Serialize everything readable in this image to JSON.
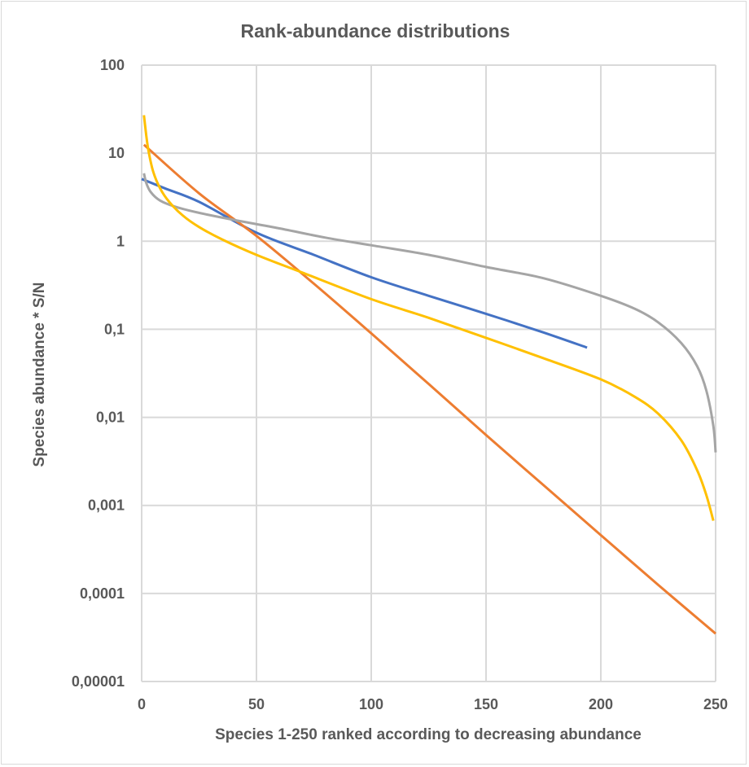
{
  "chart_data": {
    "type": "line",
    "title": "Rank-abundance distributions",
    "xlabel": "Species 1-250 ranked according to decreasing abundance",
    "ylabel": "Species abundance * S/N",
    "xlim": [
      0,
      250
    ],
    "ylim": [
      1e-05,
      100
    ],
    "yscale": "log",
    "grid": true,
    "legend": "none",
    "x_ticks": [
      "0",
      "50",
      "100",
      "150",
      "200",
      "250"
    ],
    "x_tick_values": [
      0,
      50,
      100,
      150,
      200,
      250
    ],
    "y_ticks": [
      "100",
      "10",
      "1",
      "0,1",
      "0,01",
      "0,001",
      "0,0001",
      "0,00001"
    ],
    "y_tick_values": [
      100,
      10,
      1,
      0.1,
      0.01,
      0.001,
      0.0001,
      1e-05
    ],
    "series": [
      {
        "name": "blue-series",
        "color": "#4472c4",
        "x": [
          0,
          10,
          25,
          50,
          75,
          100,
          125,
          150,
          175,
          194
        ],
        "y": [
          5.1,
          4.0,
          2.8,
          1.25,
          0.7,
          0.39,
          0.24,
          0.15,
          0.092,
          0.062
        ]
      },
      {
        "name": "orange-series",
        "color": "#ed7d31",
        "x": [
          1,
          25,
          50,
          75,
          100,
          125,
          150,
          175,
          200,
          225,
          250
        ],
        "y": [
          12.5,
          3.5,
          1.15,
          0.33,
          0.09,
          0.024,
          0.0063,
          0.0017,
          0.00046,
          0.000125,
          3.5e-05
        ]
      },
      {
        "name": "gray-series",
        "color": "#a5a5a5",
        "x": [
          1,
          2,
          4,
          8,
          15,
          25,
          40,
          60,
          80,
          100,
          125,
          150,
          175,
          200,
          215,
          225,
          235,
          242,
          246,
          249,
          250
        ],
        "y": [
          5.9,
          4.6,
          3.6,
          2.9,
          2.45,
          2.1,
          1.75,
          1.4,
          1.1,
          0.9,
          0.7,
          0.51,
          0.38,
          0.24,
          0.17,
          0.12,
          0.07,
          0.038,
          0.02,
          0.008,
          0.004
        ]
      },
      {
        "name": "yellow-series",
        "color": "#ffc000",
        "x": [
          1,
          2,
          3,
          5,
          8,
          12,
          18,
          25,
          35,
          50,
          70,
          100,
          125,
          150,
          175,
          200,
          215,
          225,
          235,
          242,
          246,
          249
        ],
        "y": [
          27,
          16,
          10.5,
          6.2,
          4.0,
          2.8,
          1.95,
          1.45,
          1.05,
          0.7,
          0.44,
          0.22,
          0.135,
          0.08,
          0.047,
          0.027,
          0.017,
          0.011,
          0.0055,
          0.0025,
          0.0013,
          0.00067
        ]
      }
    ]
  }
}
